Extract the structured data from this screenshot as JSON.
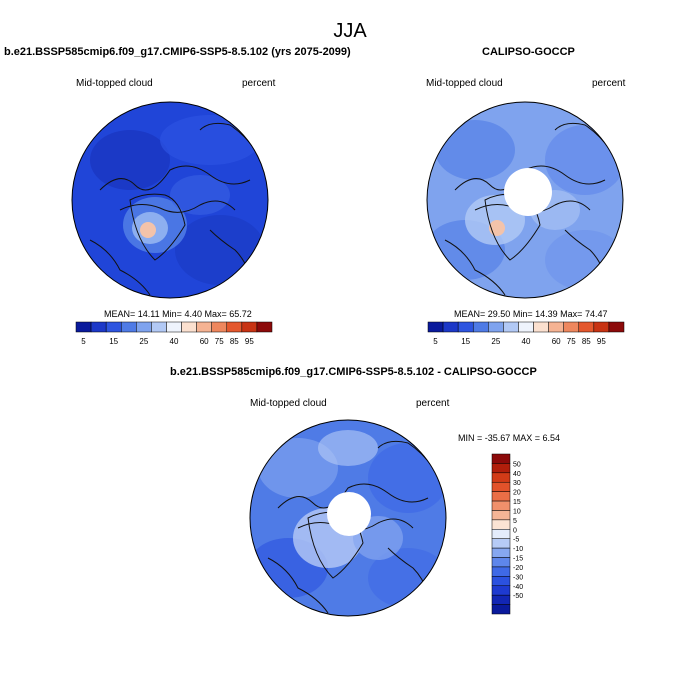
{
  "season": "JJA",
  "colors": {
    "abs_scale": [
      "#0a1a9c",
      "#1c38c8",
      "#2e55e0",
      "#4f7be6",
      "#7fa3ee",
      "#b2c9f5",
      "#eef3fc",
      "#fbe0cf",
      "#f5b393",
      "#ee875e",
      "#e4582e",
      "#c83313",
      "#8c0a0a"
    ],
    "diff_scale": [
      "#0a1a9c",
      "#1226b4",
      "#1e3ad0",
      "#2b51df",
      "#3f69e6",
      "#5e86eb",
      "#86a7f0",
      "#b6cbf6",
      "#e4ecfb",
      "#fbe4d4",
      "#f5b596",
      "#f0906b",
      "#ea6e46",
      "#e2522a",
      "#d23b17",
      "#b11e0b",
      "#8c0a0a"
    ]
  },
  "panels": {
    "model": {
      "title": "b.e21.BSSP585cmip6.f09_g17.CMIP6-SSP5-8.5.102 (yrs 2075-2099)",
      "variable": "Mid-topped cloud",
      "units": "percent",
      "stats": {
        "mean_label": "MEAN=",
        "mean": "14.11",
        "min_label": "Min=",
        "min": "4.40",
        "max_label": "Max=",
        "max": "65.72"
      },
      "colorbar_ticks": [
        "5",
        "15",
        "25",
        "40",
        "60",
        "75",
        "85",
        "95"
      ]
    },
    "obs": {
      "title": "CALIPSO-GOCCP",
      "variable": "Mid-topped cloud",
      "units": "percent",
      "stats": {
        "mean_label": "MEAN=",
        "mean": "29.50",
        "min_label": "Min=",
        "min": "14.39",
        "max_label": "Max=",
        "max": "74.47"
      },
      "colorbar_ticks": [
        "5",
        "15",
        "25",
        "40",
        "60",
        "75",
        "85",
        "95"
      ]
    },
    "diff": {
      "title": "b.e21.BSSP585cmip6.f09_g17.CMIP6-SSP5-8.5.102 - CALIPSO-GOCCP",
      "variable": "Mid-topped cloud",
      "units": "percent",
      "minmax": "MIN = -35.67 MAX =   6.54",
      "colorbar_labels": [
        "50",
        "40",
        "30",
        "20",
        "15",
        "10",
        "5",
        "0",
        "-5",
        "-10",
        "-15",
        "-20",
        "-30",
        "-40",
        "-50"
      ]
    }
  }
}
